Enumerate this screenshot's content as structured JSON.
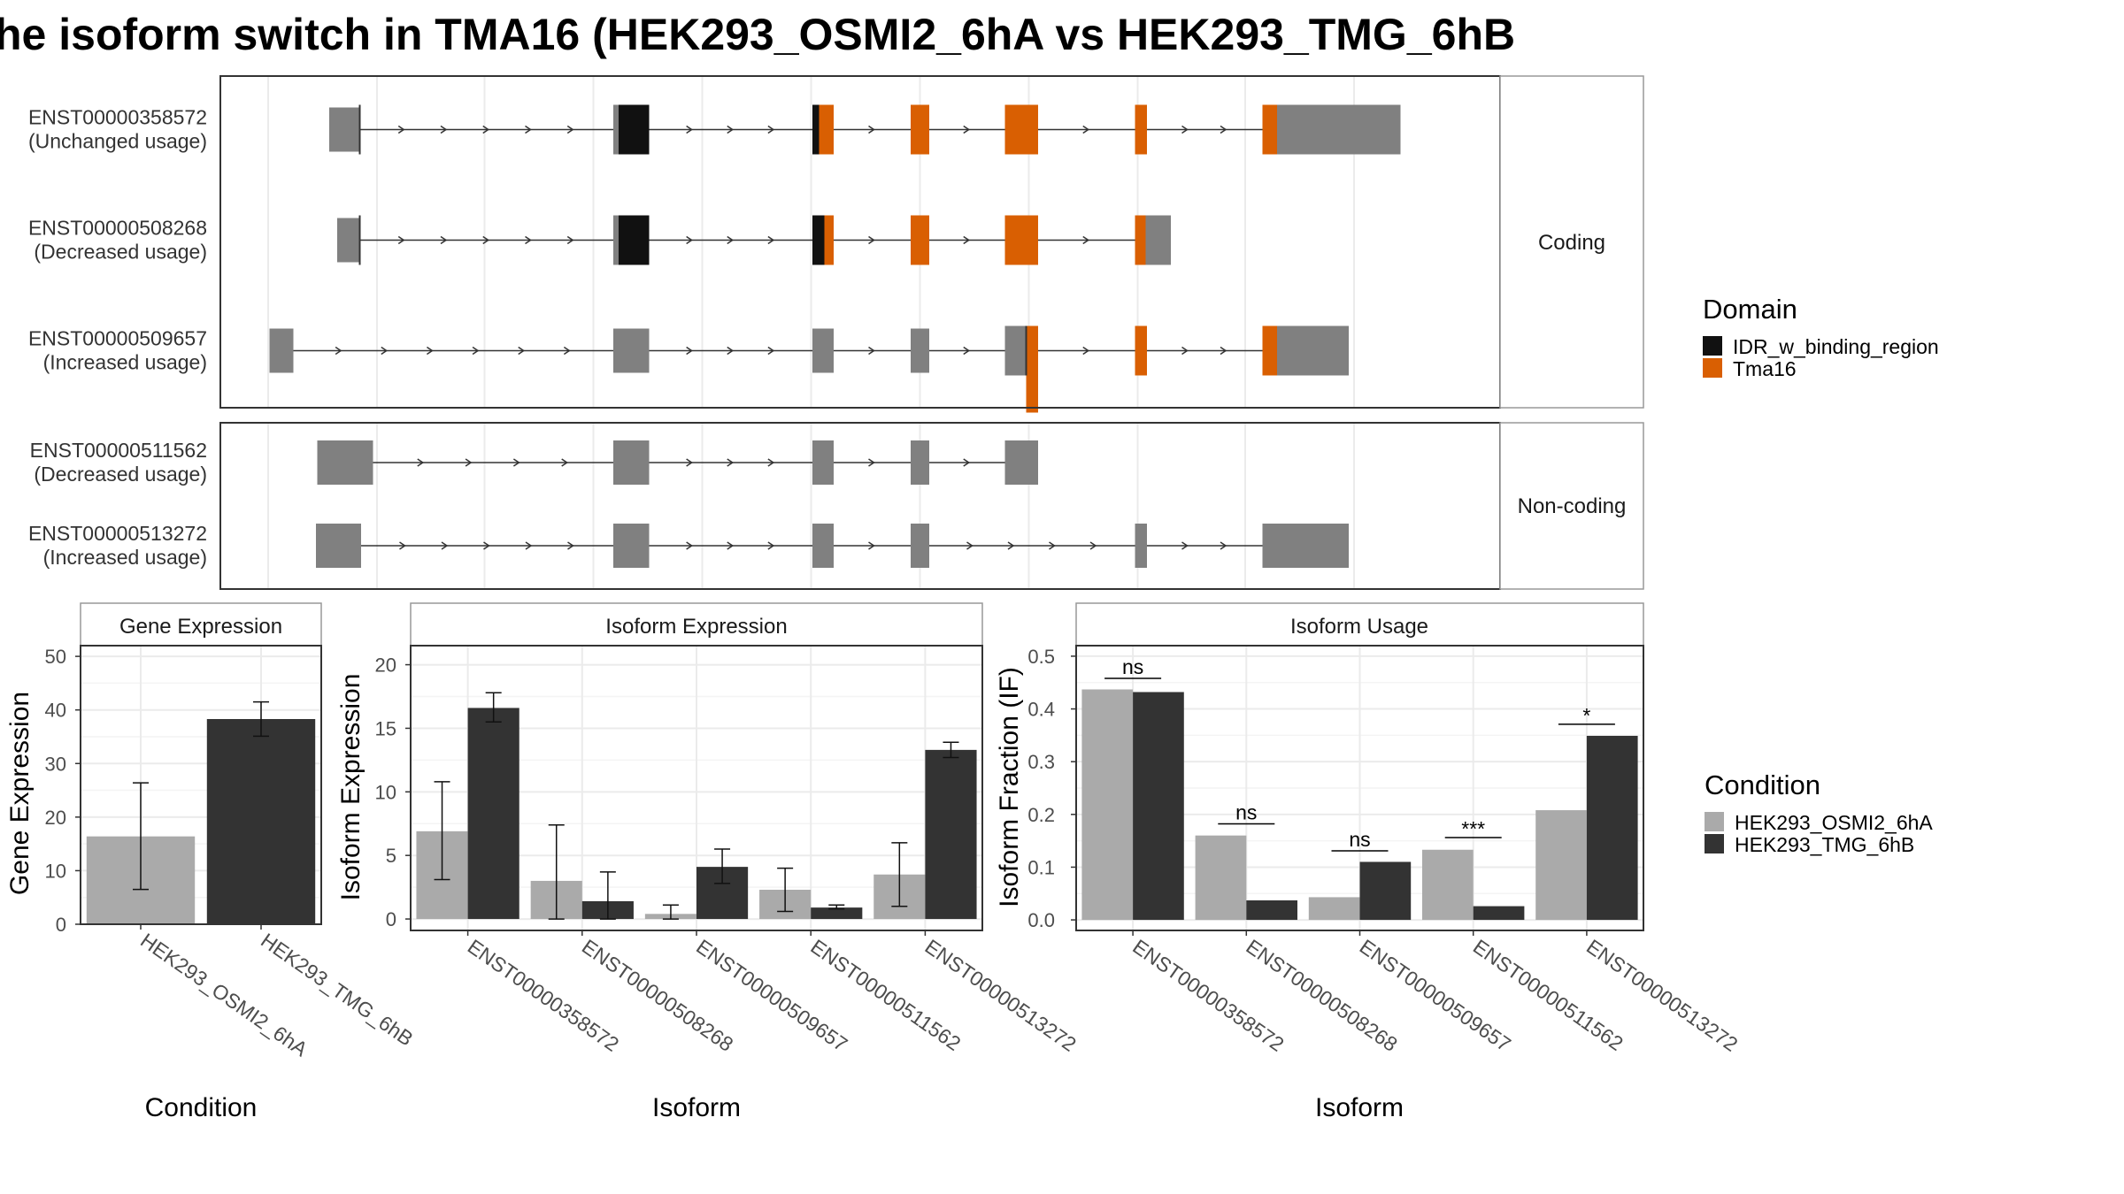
{
  "chart_data": [
    {
      "type": "gene-structure",
      "title": "he isoform switch in TMA16 (HEK293_OSMI2_6hA vs HEK293_TMG_6hB",
      "panels": [
        {
          "label": "Coding",
          "transcripts": [
            {
              "id": "ENST00000358572",
              "usage": "(Unchanged usage)",
              "exons": [
                [
                  248,
                  271,
                  "nc"
                ],
                [
                  462,
                  489,
                  "c"
                ],
                [
                  612,
                  628,
                  "c"
                ],
                [
                  686,
                  700,
                  "c"
                ],
                [
                  757,
                  782,
                  "c"
                ],
                [
                  855,
                  864,
                  "c"
                ],
                [
                  951,
                  1055,
                  "c"
                ]
              ],
              "domains": [
                [
                  466,
                  489,
                  "IDR"
                ],
                [
                  612,
                  617,
                  "IDR"
                ],
                [
                  617,
                  628,
                  "Tma"
                ],
                [
                  686,
                  700,
                  "Tma"
                ],
                [
                  757,
                  782,
                  "Tma"
                ],
                [
                  855,
                  864,
                  "Tma"
                ],
                [
                  951,
                  962,
                  "Tma"
                ]
              ],
              "cds_start": 271,
              "cds_end": 962
            },
            {
              "id": "ENST00000508268",
              "usage": "(Decreased usage)",
              "exons": [
                [
                  254,
                  271,
                  "nc"
                ],
                [
                  462,
                  489,
                  "c"
                ],
                [
                  612,
                  628,
                  "c"
                ],
                [
                  686,
                  700,
                  "c"
                ],
                [
                  757,
                  782,
                  "c"
                ],
                [
                  855,
                  882,
                  "c"
                ]
              ],
              "domains": [
                [
                  466,
                  489,
                  "IDR"
                ],
                [
                  612,
                  621,
                  "IDR"
                ],
                [
                  621,
                  628,
                  "Tma"
                ],
                [
                  686,
                  700,
                  "Tma"
                ],
                [
                  757,
                  782,
                  "Tma"
                ],
                [
                  855,
                  863,
                  "Tma"
                ]
              ],
              "cds_start": 271,
              "cds_end": 867
            },
            {
              "id": "ENST00000509657",
              "usage": "(Increased usage)",
              "exons": [
                [
                  203,
                  221,
                  "nc"
                ],
                [
                  462,
                  489,
                  "nc"
                ],
                [
                  612,
                  628,
                  "nc"
                ],
                [
                  686,
                  700,
                  "nc"
                ],
                [
                  757,
                  782,
                  "c"
                ],
                [
                  855,
                  864,
                  "c"
                ],
                [
                  951,
                  1016,
                  "c"
                ]
              ],
              "domains": [
                [
                  773,
                  782,
                  "Tma"
                ],
                [
                  855,
                  864,
                  "Tma"
                ],
                [
                  951,
                  962,
                  "Tma"
                ]
              ],
              "cds_start": 773,
              "cds_end": 980
            }
          ]
        },
        {
          "label": "Non-coding",
          "transcripts": [
            {
              "id": "ENST00000511562",
              "usage": "(Decreased usage)",
              "exons": [
                [
                  239,
                  281,
                  "nc"
                ],
                [
                  462,
                  489,
                  "nc"
                ],
                [
                  612,
                  628,
                  "nc"
                ],
                [
                  686,
                  700,
                  "nc"
                ],
                [
                  757,
                  782,
                  "nc"
                ]
              ],
              "domains": []
            },
            {
              "id": "ENST00000513272",
              "usage": "(Increased usage)",
              "exons": [
                [
                  238,
                  272,
                  "nc"
                ],
                [
                  462,
                  489,
                  "nc"
                ],
                [
                  612,
                  628,
                  "nc"
                ],
                [
                  686,
                  700,
                  "nc"
                ],
                [
                  855,
                  864,
                  "nc"
                ],
                [
                  951,
                  1016,
                  "nc"
                ]
              ],
              "domains": []
            }
          ]
        }
      ],
      "legend": {
        "title": "Domain",
        "items": [
          {
            "label": "IDR_w_binding_region",
            "color": "#111111"
          },
          {
            "label": "Tma16",
            "color": "#d95f02"
          }
        ]
      }
    },
    {
      "type": "bar",
      "strip": "Gene Expression",
      "ylabel": "Gene Expression",
      "xlabel": "Condition",
      "ylim": [
        0,
        52
      ],
      "yticks": [
        0,
        10,
        20,
        30,
        40,
        50
      ],
      "categories": [
        "HEK293_OSMI2_6hA",
        "HEK293_TMG_6hB"
      ],
      "values": [
        16.4,
        38.3
      ],
      "err_low": [
        6.5,
        35.1
      ],
      "err_high": [
        26.4,
        41.5
      ]
    },
    {
      "type": "bar",
      "strip": "Isoform Expression",
      "ylabel": "Isoform Expression",
      "xlabel": "Isoform",
      "ylim": [
        -0.9,
        21.5
      ],
      "yticks": [
        0,
        5,
        10,
        15,
        20
      ],
      "categories": [
        "ENST00000358572",
        "ENST00000508268",
        "ENST00000509657",
        "ENST00000511562",
        "ENST00000513272"
      ],
      "series": [
        {
          "name": "HEK293_OSMI2_6hA",
          "values": [
            6.9,
            3.0,
            0.4,
            2.3,
            3.5
          ],
          "err_low": [
            3.1,
            0.0,
            0.0,
            0.6,
            1.0
          ],
          "err_high": [
            10.8,
            7.4,
            1.1,
            4.0,
            6.0
          ]
        },
        {
          "name": "HEK293_TMG_6hB",
          "values": [
            16.6,
            1.4,
            4.1,
            0.9,
            13.3
          ],
          "err_low": [
            15.5,
            0.0,
            2.8,
            0.8,
            12.7
          ],
          "err_high": [
            17.8,
            3.7,
            5.5,
            1.1,
            13.9
          ]
        }
      ]
    },
    {
      "type": "bar",
      "strip": "Isoform Usage",
      "ylabel": "Isoform Fraction (IF)",
      "xlabel": "Isoform",
      "ylim": [
        -0.02,
        0.52
      ],
      "yticks": [
        0.0,
        0.1,
        0.2,
        0.3,
        0.4,
        0.5
      ],
      "ytick_labels": [
        "0.0",
        "0.1",
        "0.2",
        "0.3",
        "0.4",
        "0.5"
      ],
      "categories": [
        "ENST00000358572",
        "ENST00000508268",
        "ENST00000509657",
        "ENST00000511562",
        "ENST00000513272"
      ],
      "series": [
        {
          "name": "HEK293_OSMI2_6hA",
          "values": [
            0.437,
            0.16,
            0.043,
            0.133,
            0.208
          ]
        },
        {
          "name": "HEK293_TMG_6hB",
          "values": [
            0.432,
            0.037,
            0.11,
            0.026,
            0.349
          ]
        }
      ],
      "significance": [
        "ns",
        "ns",
        "ns",
        "***",
        "*"
      ],
      "sig_y": [
        0.458,
        0.182,
        0.131,
        0.156,
        0.371
      ],
      "legend": {
        "title": "Condition",
        "items": [
          {
            "label": "HEK293_OSMI2_6hA",
            "color": "#aaaaaa"
          },
          {
            "label": "HEK293_TMG_6hB",
            "color": "#333333"
          }
        ]
      }
    }
  ]
}
